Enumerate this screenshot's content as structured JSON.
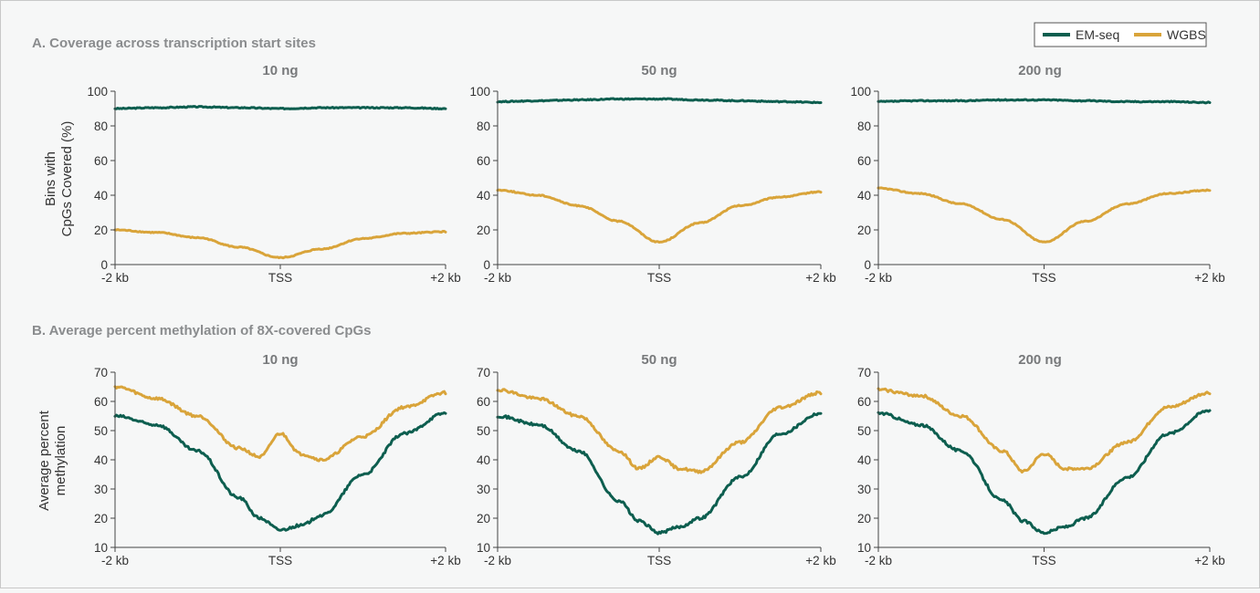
{
  "colors": {
    "emseq": "#0d5e4f",
    "wgbs": "#d9a43a",
    "axis": "#444444",
    "background": "#f6f7f7"
  },
  "legend": {
    "placement": "top-right",
    "items": [
      "EM-seq",
      "WGBS"
    ]
  },
  "sections": [
    {
      "title": "A. Coverage across transcription start sites",
      "ylabel_lines": [
        "Bins with",
        "CpGs Covered (%)"
      ],
      "ylim": [
        0,
        100
      ],
      "yticks": [
        "0",
        "20",
        "40",
        "60",
        "80",
        "100"
      ],
      "xticks": [
        "-2 kb",
        "TSS",
        "+2 kb"
      ],
      "panels": [
        {
          "title": "10 ng"
        },
        {
          "title": "50 ng"
        },
        {
          "title": "200 ng"
        }
      ]
    },
    {
      "title": "B. Average percent methylation of 8X-covered CpGs",
      "ylabel_lines": [
        "Average percent",
        "methylation"
      ],
      "ylim": [
        10,
        70
      ],
      "yticks": [
        "10",
        "20",
        "30",
        "40",
        "50",
        "60",
        "70"
      ],
      "xticks": [
        "-2 kb",
        "TSS",
        "+2 kb"
      ],
      "panels": [
        {
          "title": "10 ng"
        },
        {
          "title": "50 ng"
        },
        {
          "title": "200 ng"
        }
      ]
    }
  ],
  "chart_data": [
    {
      "type": "line",
      "section": "A",
      "title": "10 ng",
      "xlabel": "",
      "ylabel": "Bins with CpGs Covered (%)",
      "xlim": [
        -2,
        2
      ],
      "ylim": [
        0,
        100
      ],
      "grid": false,
      "x": [
        -2.0,
        -1.5,
        -1.0,
        -0.5,
        0.0,
        0.5,
        1.0,
        1.5,
        2.0
      ],
      "series": [
        {
          "name": "EM-seq",
          "values": [
            90,
            90.5,
            91,
            90.5,
            90,
            90.5,
            90.5,
            90.5,
            90
          ]
        },
        {
          "name": "WGBS",
          "values": [
            20,
            18.5,
            15.5,
            10,
            4,
            9,
            15,
            18,
            19
          ]
        }
      ]
    },
    {
      "type": "line",
      "section": "A",
      "title": "50 ng",
      "xlabel": "",
      "ylabel": "Bins with CpGs Covered (%)",
      "xlim": [
        -2,
        2
      ],
      "ylim": [
        0,
        100
      ],
      "grid": false,
      "x": [
        -2.0,
        -1.5,
        -1.0,
        -0.5,
        0.0,
        0.5,
        1.0,
        1.5,
        2.0
      ],
      "series": [
        {
          "name": "EM-seq",
          "values": [
            94,
            94.5,
            95,
            95.5,
            95.5,
            95,
            94.5,
            94,
            93.5
          ]
        },
        {
          "name": "WGBS",
          "values": [
            43,
            40,
            34,
            25,
            13,
            24,
            34,
            39,
            42
          ]
        }
      ]
    },
    {
      "type": "line",
      "section": "A",
      "title": "200 ng",
      "xlabel": "",
      "ylabel": "Bins with CpGs Covered (%)",
      "xlim": [
        -2,
        2
      ],
      "ylim": [
        0,
        100
      ],
      "grid": false,
      "x": [
        -2.0,
        -1.5,
        -1.0,
        -0.5,
        0.0,
        0.5,
        1.0,
        1.5,
        2.0
      ],
      "series": [
        {
          "name": "EM-seq",
          "values": [
            94,
            94.5,
            94.5,
            95,
            95,
            94.5,
            94,
            94,
            93.5
          ]
        },
        {
          "name": "WGBS",
          "values": [
            44,
            41,
            35,
            26,
            13,
            25,
            35,
            41,
            43
          ]
        }
      ]
    },
    {
      "type": "line",
      "section": "B",
      "title": "10 ng",
      "xlabel": "",
      "ylabel": "Average percent methylation",
      "xlim": [
        -2,
        2
      ],
      "ylim": [
        10,
        70
      ],
      "grid": false,
      "x": [
        -2.0,
        -1.5,
        -1.0,
        -0.5,
        -0.25,
        0.0,
        0.25,
        0.5,
        1.0,
        1.5,
        2.0
      ],
      "series": [
        {
          "name": "EM-seq",
          "values": [
            55,
            52,
            43,
            27,
            20,
            16,
            17.5,
            21,
            35,
            49,
            56
          ]
        },
        {
          "name": "WGBS",
          "values": [
            65,
            61,
            55,
            44,
            41,
            49,
            42,
            40,
            48,
            58,
            63
          ]
        }
      ]
    },
    {
      "type": "line",
      "section": "B",
      "title": "50 ng",
      "xlabel": "",
      "ylabel": "Average percent methylation",
      "xlim": [
        -2,
        2
      ],
      "ylim": [
        10,
        70
      ],
      "grid": false,
      "x": [
        -2.0,
        -1.5,
        -1.0,
        -0.5,
        -0.25,
        0.0,
        0.25,
        0.5,
        1.0,
        1.5,
        2.0
      ],
      "series": [
        {
          "name": "EM-seq",
          "values": [
            55,
            52,
            43,
            26,
            19,
            15,
            17,
            20,
            34,
            49,
            56
          ]
        },
        {
          "name": "WGBS",
          "values": [
            64,
            61,
            55,
            43,
            37,
            41,
            37,
            36,
            46,
            58,
            63
          ]
        }
      ]
    },
    {
      "type": "line",
      "section": "B",
      "title": "200 ng",
      "xlabel": "",
      "ylabel": "Average percent methylation",
      "xlim": [
        -2,
        2
      ],
      "ylim": [
        10,
        70
      ],
      "grid": false,
      "x": [
        -2.0,
        -1.5,
        -1.0,
        -0.5,
        -0.25,
        0.0,
        0.25,
        0.5,
        1.0,
        1.5,
        2.0
      ],
      "series": [
        {
          "name": "EM-seq",
          "values": [
            56,
            52,
            43,
            26,
            19,
            15,
            17,
            20,
            34,
            49,
            57
          ]
        },
        {
          "name": "WGBS",
          "values": [
            64,
            62,
            55,
            43,
            36,
            42,
            37,
            37,
            46,
            58,
            63
          ]
        }
      ]
    }
  ]
}
